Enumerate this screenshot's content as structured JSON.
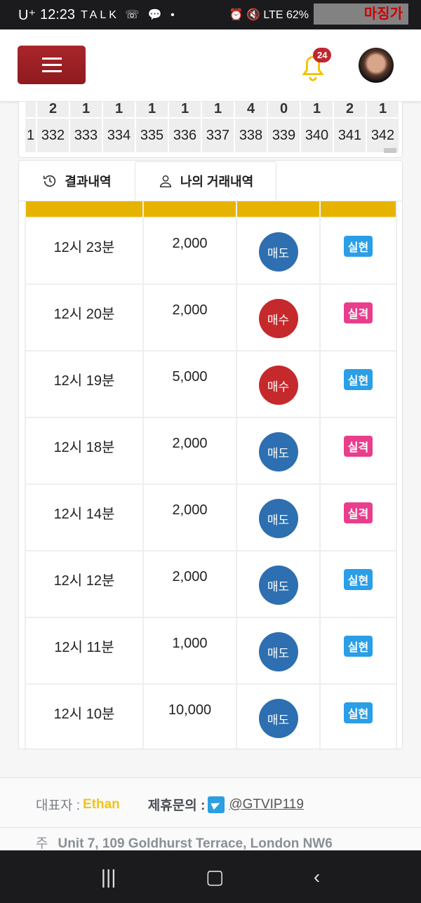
{
  "status_bar": {
    "carrier": "U⁺",
    "time": "12:23",
    "notif_icons": "TALK ☏ 💬 •",
    "right": "⏰ 🔇 LTE 62%",
    "watermark": "마징가"
  },
  "header": {
    "notification_count": "24"
  },
  "grid": {
    "top_row": [
      "",
      "2",
      "1",
      "1",
      "1",
      "1",
      "1",
      "4",
      "0",
      "1",
      "2",
      "1"
    ],
    "bottom_row": [
      "1",
      "332",
      "333",
      "334",
      "335",
      "336",
      "337",
      "338",
      "339",
      "340",
      "341",
      "342"
    ]
  },
  "tabs": [
    {
      "label": "결과내역"
    },
    {
      "label": "나의 거래내역"
    }
  ],
  "trades": [
    {
      "time": "12시 23분",
      "amount": "2,000",
      "type": "매도",
      "result": "실현"
    },
    {
      "time": "12시 20분",
      "amount": "2,000",
      "type": "매수",
      "result": "실격"
    },
    {
      "time": "12시 19분",
      "amount": "5,000",
      "type": "매수",
      "result": "실현"
    },
    {
      "time": "12시 18분",
      "amount": "2,000",
      "type": "매도",
      "result": "실격"
    },
    {
      "time": "12시 14분",
      "amount": "2,000",
      "type": "매도",
      "result": "실격"
    },
    {
      "time": "12시 12분",
      "amount": "2,000",
      "type": "매도",
      "result": "실현"
    },
    {
      "time": "12시 11분",
      "amount": "1,000",
      "type": "매도",
      "result": "실현"
    },
    {
      "time": "12시 10분",
      "amount": "10,000",
      "type": "매도",
      "result": "실현"
    }
  ],
  "footer": {
    "rep_label": "대표자 :",
    "rep_name": "Ethan",
    "contact_label": "제휴문의 :",
    "contact_handle": "@GTVIP119",
    "addr_label": "주",
    "address": "Unit 7, 109 Goldhurst Terrace, London NW6"
  },
  "colors": {
    "header_bar": "#e6b400",
    "sell": "#2d6fb0",
    "buy": "#c6292b",
    "hit": "#2a9ee6",
    "miss": "#e83e8c",
    "menu": "#a8252a"
  }
}
